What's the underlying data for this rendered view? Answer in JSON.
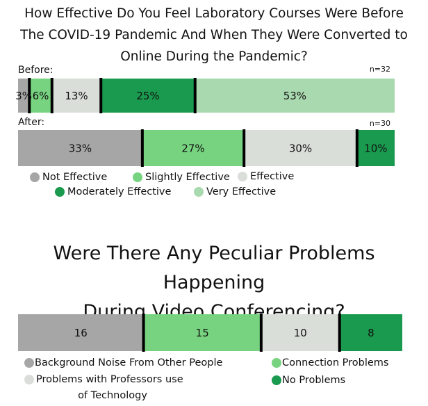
{
  "colors": {
    "not_effective": "#a6a6a6",
    "slightly_effective": "#77d37f",
    "effective": "#d9ded9",
    "moderately_effective": "#1a9a4e",
    "very_effective": "#a9d9ae",
    "separator": "#000000"
  },
  "chart_data": [
    {
      "type": "stacked-bar",
      "title_lines": [
        "How Effective Do You Feel Laboratory Courses Were Before",
        "The COVID-19 Pandemic And When They Were Converted to",
        "Online During the Pandemic?"
      ],
      "legend": [
        {
          "label": "Not Effective",
          "color": "#a6a6a6"
        },
        {
          "label": "Slightly Effective",
          "color": "#77d37f"
        },
        {
          "label": "Effective",
          "color": "#d9ded9"
        },
        {
          "label": "Moderately Effective",
          "color": "#1a9a4e"
        },
        {
          "label": "Very Effective",
          "color": "#a9d9ae"
        }
      ],
      "bars": [
        {
          "name": "Before:",
          "n_label": "n=32",
          "segments": [
            {
              "category": "Not Effective",
              "value": 3,
              "label": "3%",
              "color": "#a6a6a6"
            },
            {
              "category": "Slightly Effective",
              "value": 6,
              "label": "6%",
              "color": "#77d37f"
            },
            {
              "category": "Effective",
              "value": 13,
              "label": "13%",
              "color": "#d9ded9"
            },
            {
              "category": "Moderately Effective",
              "value": 25,
              "label": "25%",
              "color": "#1a9a4e"
            },
            {
              "category": "Very Effective",
              "value": 53,
              "label": "53%",
              "color": "#a9d9ae"
            }
          ]
        },
        {
          "name": "After:",
          "n_label": "n=30",
          "segments": [
            {
              "category": "Not Effective",
              "value": 33,
              "label": "33%",
              "color": "#a6a6a6"
            },
            {
              "category": "Slightly Effective",
              "value": 27,
              "label": "27%",
              "color": "#77d37f"
            },
            {
              "category": "Effective",
              "value": 30,
              "label": "30%",
              "color": "#d9ded9"
            },
            {
              "category": "Moderately Effective",
              "value": 10,
              "label": "10%",
              "color": "#1a9a4e"
            }
          ]
        }
      ]
    },
    {
      "type": "stacked-bar",
      "title_lines": [
        "Were There Any Peculiar Problems Happening",
        "During Video Conferencing?"
      ],
      "legend": [
        {
          "label": "Background Noise From Other People",
          "color": "#a6a6a6"
        },
        {
          "label": "Connection Problems",
          "color": "#77d37f"
        },
        {
          "label": "Problems with Professors use of Technology",
          "color": "#d9ded9"
        },
        {
          "label": "No Problems",
          "color": "#1a9a4e"
        }
      ],
      "bars": [
        {
          "name": "",
          "segments": [
            {
              "category": "Background Noise From Other People",
              "value": 16,
              "label": "16",
              "color": "#a6a6a6"
            },
            {
              "category": "Connection Problems",
              "value": 15,
              "label": "15",
              "color": "#77d37f"
            },
            {
              "category": "Problems with Professors use of Technology",
              "value": 10,
              "label": "10",
              "color": "#d9ded9"
            },
            {
              "category": "No Problems",
              "value": 8,
              "label": "8",
              "color": "#1a9a4e"
            }
          ]
        }
      ]
    }
  ]
}
